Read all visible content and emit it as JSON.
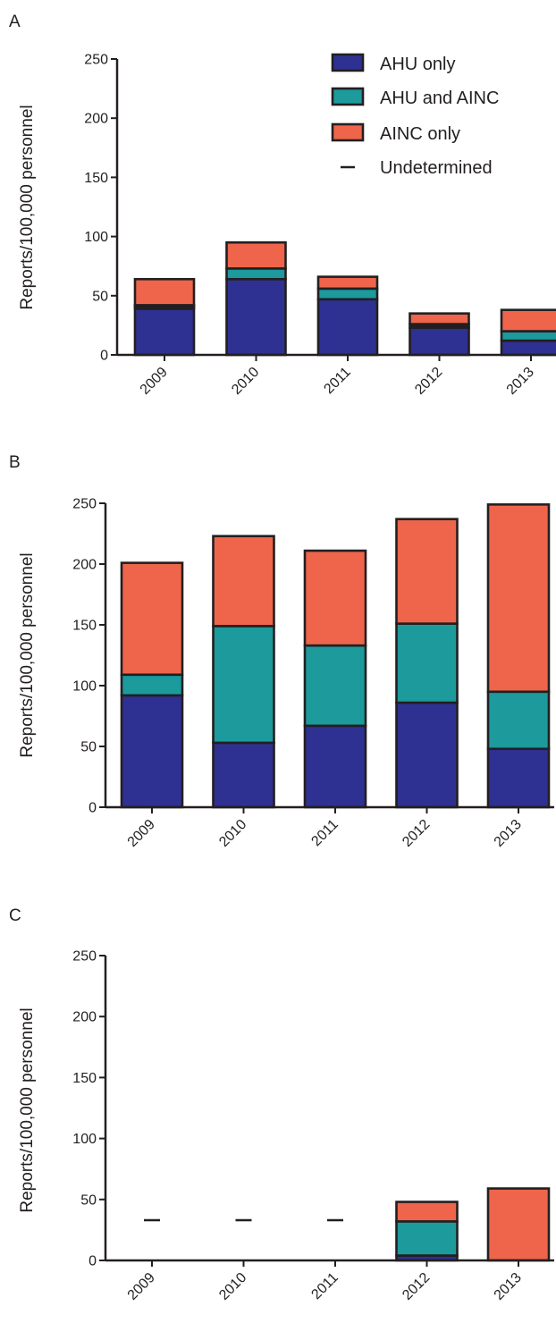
{
  "colors": {
    "ahu_only": "#2e3192",
    "ahu_and_ainc": "#1c9a9c",
    "ainc_only": "#ee654b",
    "undetermined": "#231f20",
    "axis": "#231f20"
  },
  "legend": [
    {
      "key": "ahu_only",
      "label": "AHU only",
      "symbol": "box"
    },
    {
      "key": "ahu_and_ainc",
      "label": "AHU and AINC",
      "symbol": "box"
    },
    {
      "key": "ainc_only",
      "label": "AINC only",
      "symbol": "box"
    },
    {
      "key": "undetermined",
      "label": "Undetermined",
      "symbol": "dash"
    }
  ],
  "chart_data": [
    {
      "type": "bar",
      "panel": "A",
      "stacked": true,
      "legend_position": "top-right",
      "ylabel": "Reports/100,000 personnel",
      "xlabel": "",
      "ylim": [
        0,
        250
      ],
      "yticks": [
        0,
        50,
        100,
        150,
        200,
        250
      ],
      "categories": [
        "2009",
        "2010",
        "2011",
        "2012",
        "2013"
      ],
      "series": [
        {
          "name": "AHU only",
          "key": "ahu_only",
          "values": [
            39,
            64,
            47,
            23,
            12
          ]
        },
        {
          "name": "Undetermined",
          "key": "undetermined",
          "values": [
            2,
            0,
            0,
            3,
            0
          ]
        },
        {
          "name": "AHU and AINC",
          "key": "ahu_and_ainc",
          "values": [
            1,
            9,
            9,
            0,
            8
          ]
        },
        {
          "name": "AINC only",
          "key": "ainc_only",
          "values": [
            22,
            22,
            10,
            9,
            18
          ]
        }
      ]
    },
    {
      "type": "bar",
      "panel": "B",
      "stacked": true,
      "ylabel": "Reports/100,000 personnel",
      "xlabel": "",
      "ylim": [
        0,
        250
      ],
      "yticks": [
        0,
        50,
        100,
        150,
        200,
        250
      ],
      "categories": [
        "2009",
        "2010",
        "2011",
        "2012",
        "2013"
      ],
      "series": [
        {
          "name": "AHU only",
          "key": "ahu_only",
          "values": [
            92,
            53,
            67,
            86,
            48
          ]
        },
        {
          "name": "AHU and AINC",
          "key": "ahu_and_ainc",
          "values": [
            17,
            96,
            66,
            65,
            47
          ]
        },
        {
          "name": "AINC only",
          "key": "ainc_only",
          "values": [
            92,
            74,
            78,
            86,
            154
          ]
        }
      ]
    },
    {
      "type": "bar",
      "panel": "C",
      "stacked": true,
      "ylabel": "Reports/100,000 personnel",
      "xlabel": "",
      "ylim": [
        0,
        250
      ],
      "yticks": [
        0,
        50,
        100,
        150,
        200,
        250
      ],
      "categories": [
        "2009",
        "2010",
        "2011",
        "2012",
        "2013"
      ],
      "series": [
        {
          "name": "AHU only",
          "key": "ahu_only",
          "values": [
            0,
            0,
            0,
            4,
            0
          ]
        },
        {
          "name": "AHU and AINC",
          "key": "ahu_and_ainc",
          "values": [
            0,
            0,
            0,
            28,
            0
          ]
        },
        {
          "name": "AINC only",
          "key": "ainc_only",
          "values": [
            0,
            0,
            0,
            16,
            59
          ]
        }
      ],
      "undetermined_markers": [
        33,
        33,
        33,
        null,
        null
      ]
    }
  ]
}
